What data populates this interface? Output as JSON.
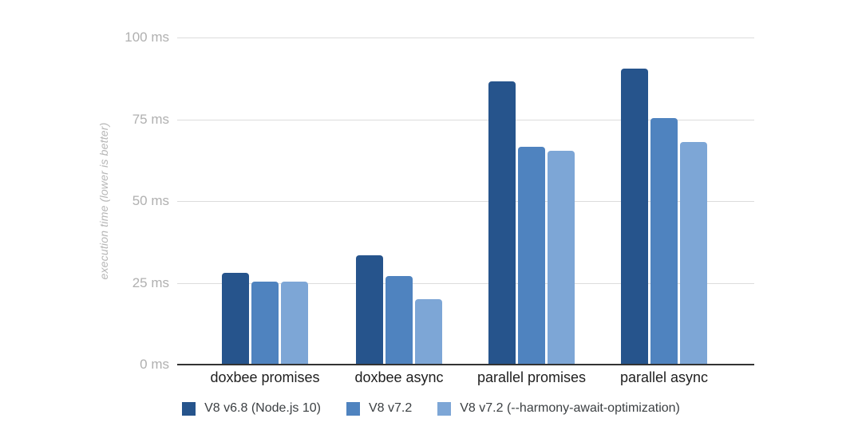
{
  "chart": {
    "ytick_labels": [
      "0 ms",
      "25 ms",
      "50 ms",
      "75 ms",
      "100 ms"
    ]
  },
  "chart_data": {
    "type": "bar",
    "title": "",
    "ylabel": "execution time (lower is better)",
    "xlabel": "",
    "categories": [
      "doxbee promises",
      "doxbee async",
      "parallel promises",
      "parallel async"
    ],
    "series": [
      {
        "name": "V8 v6.8 (Node.js 10)",
        "color": "#26548C",
        "values": [
          28,
          33.5,
          86.5,
          90.5
        ]
      },
      {
        "name": "V8 v7.2",
        "color": "#4F83BF",
        "values": [
          25.5,
          27,
          66.5,
          75.5
        ]
      },
      {
        "name": "V8 v7.2 (--harmony-await-optimization)",
        "color": "#7DA6D6",
        "values": [
          25.5,
          20,
          65.5,
          68
        ]
      }
    ],
    "ylim": [
      0,
      100
    ],
    "yticks": [
      0,
      25,
      50,
      75,
      100
    ],
    "ytick_suffix": " ms",
    "grid": true,
    "legend_position": "bottom",
    "colors": {
      "grid_line": "#DCDCDC",
      "axis_line": "#333333",
      "tick_label": "#B0B0B0",
      "axis_title": "#B6B6B6",
      "category_label": "#1F1F1F",
      "legend_label": "#3C4043",
      "background": "#FFFFFF"
    }
  }
}
